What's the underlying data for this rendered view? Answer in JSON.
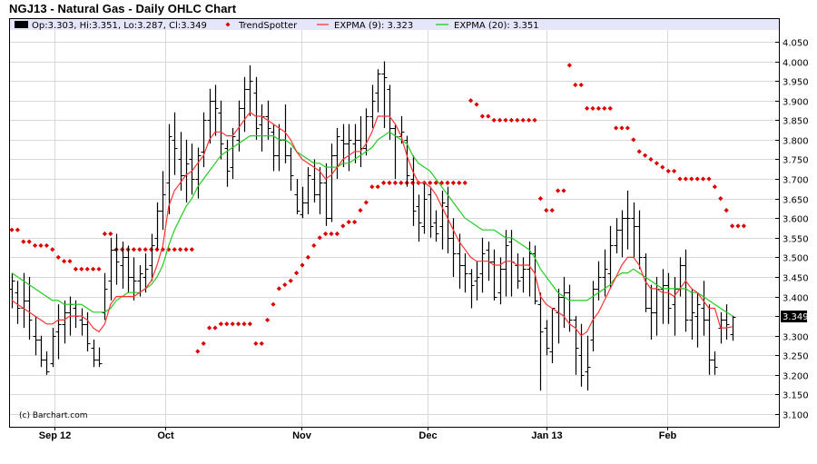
{
  "title": "NGJ13 - Natural Gas - Daily OHLC Chart",
  "legend": {
    "ohlc": "Op:3.303, Hi:3.351, Lo:3.287, Cl:3.349",
    "trendspotter": "TrendSpotter",
    "ema9": "EXPMA (9): 3.323",
    "ema20": "EXPMA (20): 3.351"
  },
  "copyright": "(c) Barchart.com",
  "last_price_label": "3.349",
  "colors": {
    "bars": "#000000",
    "ema9": "#ff3333",
    "ema20": "#22cc22",
    "trendspotter": "#dd0000",
    "legend_bg": "#e6e6fa",
    "grid": "#d8d8d8"
  },
  "chart_data": {
    "type": "ohlc",
    "title": "NGJ13 - Natural Gas - Daily OHLC Chart",
    "xlabel": "",
    "ylabel": "",
    "ylim": [
      3.07,
      4.11
    ],
    "grid": true,
    "legend_position": "top",
    "y_ticks": [
      "4.050",
      "4.000",
      "3.950",
      "3.900",
      "3.850",
      "3.800",
      "3.750",
      "3.700",
      "3.650",
      "3.600",
      "3.550",
      "3.500",
      "3.450",
      "3.400",
      "3.300",
      "3.250",
      "3.200",
      "3.150",
      "3.100"
    ],
    "x_ticks": [
      {
        "label": "Sep 12",
        "index": 7
      },
      {
        "label": "Oct",
        "index": 26
      },
      {
        "label": "Nov",
        "index": 49
      },
      {
        "label": "Dec",
        "index": 71
      },
      {
        "label": "Jan 13",
        "index": 92
      },
      {
        "label": "Feb",
        "index": 113
      }
    ],
    "series": [
      {
        "name": "OHLC",
        "values": [
          [
            3.42,
            3.46,
            3.37,
            3.44
          ],
          [
            3.41,
            3.44,
            3.33,
            3.37
          ],
          [
            3.37,
            3.46,
            3.32,
            3.39
          ],
          [
            3.39,
            3.45,
            3.29,
            3.34
          ],
          [
            3.3,
            3.35,
            3.25,
            3.29
          ],
          [
            3.29,
            3.3,
            3.22,
            3.24
          ],
          [
            3.24,
            3.26,
            3.2,
            3.21
          ],
          [
            3.23,
            3.32,
            3.22,
            3.3
          ],
          [
            3.31,
            3.38,
            3.24,
            3.33
          ],
          [
            3.33,
            3.39,
            3.28,
            3.36
          ],
          [
            3.36,
            3.4,
            3.3,
            3.38
          ],
          [
            3.37,
            3.39,
            3.32,
            3.35
          ],
          [
            3.34,
            3.37,
            3.3,
            3.33
          ],
          [
            3.33,
            3.36,
            3.26,
            3.28
          ],
          [
            3.27,
            3.29,
            3.22,
            3.24
          ],
          [
            3.24,
            3.27,
            3.22,
            3.23
          ],
          [
            3.36,
            3.46,
            3.34,
            3.42
          ],
          [
            3.44,
            3.55,
            3.39,
            3.52
          ],
          [
            3.52,
            3.56,
            3.43,
            3.49
          ],
          [
            3.48,
            3.54,
            3.42,
            3.5
          ],
          [
            3.5,
            3.53,
            3.41,
            3.45
          ],
          [
            3.45,
            3.5,
            3.39,
            3.44
          ],
          [
            3.44,
            3.48,
            3.4,
            3.46
          ],
          [
            3.45,
            3.51,
            3.41,
            3.47
          ],
          [
            3.48,
            3.56,
            3.44,
            3.53
          ],
          [
            3.55,
            3.64,
            3.52,
            3.62
          ],
          [
            3.62,
            3.72,
            3.57,
            3.66
          ],
          [
            3.69,
            3.84,
            3.61,
            3.81
          ],
          [
            3.8,
            3.87,
            3.71,
            3.78
          ],
          [
            3.75,
            3.82,
            3.67,
            3.71
          ],
          [
            3.71,
            3.8,
            3.64,
            3.74
          ],
          [
            3.75,
            3.79,
            3.66,
            3.7
          ],
          [
            3.7,
            3.78,
            3.65,
            3.76
          ],
          [
            3.77,
            3.87,
            3.73,
            3.85
          ],
          [
            3.85,
            3.93,
            3.79,
            3.9
          ],
          [
            3.9,
            3.94,
            3.81,
            3.88
          ],
          [
            3.87,
            3.9,
            3.75,
            3.79
          ],
          [
            3.78,
            3.8,
            3.68,
            3.72
          ],
          [
            3.73,
            3.83,
            3.7,
            3.81
          ],
          [
            3.8,
            3.9,
            3.77,
            3.88
          ],
          [
            3.88,
            3.96,
            3.82,
            3.93
          ],
          [
            3.93,
            3.99,
            3.86,
            3.95
          ],
          [
            3.92,
            3.96,
            3.8,
            3.83
          ],
          [
            3.84,
            3.89,
            3.77,
            3.86
          ],
          [
            3.86,
            3.9,
            3.8,
            3.83
          ],
          [
            3.82,
            3.84,
            3.72,
            3.76
          ],
          [
            3.76,
            3.84,
            3.72,
            3.8
          ],
          [
            3.8,
            3.89,
            3.74,
            3.76
          ],
          [
            3.76,
            3.78,
            3.67,
            3.71
          ],
          [
            3.66,
            3.7,
            3.61,
            3.62
          ],
          [
            3.61,
            3.68,
            3.6,
            3.64
          ],
          [
            3.64,
            3.73,
            3.61,
            3.71
          ],
          [
            3.7,
            3.75,
            3.64,
            3.66
          ],
          [
            3.66,
            3.73,
            3.61,
            3.69
          ],
          [
            3.69,
            3.74,
            3.58,
            3.6
          ],
          [
            3.6,
            3.79,
            3.59,
            3.76
          ],
          [
            3.76,
            3.83,
            3.7,
            3.81
          ],
          [
            3.8,
            3.84,
            3.73,
            3.79
          ],
          [
            3.79,
            3.84,
            3.72,
            3.8
          ],
          [
            3.79,
            3.84,
            3.74,
            3.8
          ],
          [
            3.8,
            3.86,
            3.73,
            3.78
          ],
          [
            3.78,
            3.88,
            3.76,
            3.86
          ],
          [
            3.86,
            3.94,
            3.83,
            3.9
          ],
          [
            3.92,
            3.98,
            3.87,
            3.97
          ],
          [
            3.97,
            4.0,
            3.83,
            3.96
          ],
          [
            3.93,
            3.94,
            3.8,
            3.83
          ],
          [
            3.83,
            3.84,
            3.7,
            3.81
          ],
          [
            3.81,
            3.86,
            3.79,
            3.82
          ],
          [
            3.8,
            3.81,
            3.68,
            3.71
          ],
          [
            3.7,
            3.76,
            3.58,
            3.62
          ],
          [
            3.63,
            3.66,
            3.54,
            3.59
          ],
          [
            3.58,
            3.69,
            3.56,
            3.65
          ],
          [
            3.66,
            3.68,
            3.55,
            3.58
          ],
          [
            3.59,
            3.62,
            3.54,
            3.56
          ],
          [
            3.58,
            3.67,
            3.52,
            3.64
          ],
          [
            3.63,
            3.68,
            3.51,
            3.55
          ],
          [
            3.55,
            3.6,
            3.45,
            3.51
          ],
          [
            3.51,
            3.56,
            3.42,
            3.48
          ],
          [
            3.48,
            3.51,
            3.41,
            3.46
          ],
          [
            3.46,
            3.47,
            3.37,
            3.43
          ],
          [
            3.44,
            3.49,
            3.39,
            3.45
          ],
          [
            3.46,
            3.55,
            3.41,
            3.51
          ],
          [
            3.52,
            3.54,
            3.44,
            3.49
          ],
          [
            3.49,
            3.52,
            3.39,
            3.4
          ],
          [
            3.41,
            3.5,
            3.38,
            3.47
          ],
          [
            3.47,
            3.57,
            3.4,
            3.53
          ],
          [
            3.54,
            3.57,
            3.4,
            3.49
          ],
          [
            3.48,
            3.51,
            3.42,
            3.44
          ],
          [
            3.45,
            3.5,
            3.41,
            3.47
          ],
          [
            3.47,
            3.54,
            3.4,
            3.51
          ],
          [
            3.51,
            3.53,
            3.38,
            3.39
          ],
          [
            3.38,
            3.41,
            3.16,
            3.31
          ],
          [
            3.32,
            3.34,
            3.25,
            3.27
          ],
          [
            3.26,
            3.37,
            3.23,
            3.37
          ],
          [
            3.36,
            3.42,
            3.28,
            3.4
          ],
          [
            3.4,
            3.45,
            3.32,
            3.41
          ],
          [
            3.41,
            3.43,
            3.31,
            3.34
          ],
          [
            3.34,
            3.35,
            3.2,
            3.27
          ],
          [
            3.25,
            3.33,
            3.17,
            3.2
          ],
          [
            3.21,
            3.3,
            3.16,
            3.22
          ],
          [
            3.29,
            3.44,
            3.26,
            3.42
          ],
          [
            3.42,
            3.49,
            3.39,
            3.45
          ],
          [
            3.45,
            3.52,
            3.4,
            3.47
          ],
          [
            3.46,
            3.58,
            3.42,
            3.53
          ],
          [
            3.53,
            3.6,
            3.51,
            3.57
          ],
          [
            3.57,
            3.62,
            3.5,
            3.6
          ],
          [
            3.6,
            3.67,
            3.52,
            3.6
          ],
          [
            3.6,
            3.64,
            3.5,
            3.58
          ],
          [
            3.58,
            3.62,
            3.47,
            3.5
          ],
          [
            3.5,
            3.51,
            3.36,
            3.37
          ],
          [
            3.37,
            3.43,
            3.29,
            3.36
          ],
          [
            3.36,
            3.45,
            3.3,
            3.42
          ],
          [
            3.42,
            3.47,
            3.33,
            3.43
          ],
          [
            3.43,
            3.46,
            3.33,
            3.37
          ],
          [
            3.38,
            3.45,
            3.3,
            3.42
          ],
          [
            3.42,
            3.5,
            3.4,
            3.48
          ],
          [
            3.48,
            3.52,
            3.31,
            3.34
          ],
          [
            3.34,
            3.42,
            3.29,
            3.36
          ],
          [
            3.35,
            3.41,
            3.27,
            3.38
          ],
          [
            3.37,
            3.44,
            3.3,
            3.34
          ],
          [
            3.34,
            3.38,
            3.2,
            3.24
          ],
          [
            3.24,
            3.26,
            3.2,
            3.22
          ],
          [
            3.32,
            3.36,
            3.28,
            3.34
          ],
          [
            3.34,
            3.38,
            3.29,
            3.33
          ],
          [
            3.303,
            3.351,
            3.287,
            3.349
          ]
        ]
      },
      {
        "name": "EXPMA (9)",
        "values": [
          3.39,
          3.38,
          3.37,
          3.36,
          3.35,
          3.34,
          3.33,
          3.33,
          3.34,
          3.34,
          3.35,
          3.35,
          3.35,
          3.34,
          3.32,
          3.31,
          3.33,
          3.38,
          3.4,
          3.4,
          3.4,
          3.4,
          3.41,
          3.42,
          3.44,
          3.48,
          3.53,
          3.63,
          3.67,
          3.69,
          3.71,
          3.72,
          3.74,
          3.76,
          3.8,
          3.82,
          3.82,
          3.81,
          3.81,
          3.83,
          3.85,
          3.87,
          3.86,
          3.86,
          3.85,
          3.84,
          3.83,
          3.82,
          3.8,
          3.77,
          3.75,
          3.74,
          3.73,
          3.72,
          3.7,
          3.71,
          3.73,
          3.75,
          3.76,
          3.77,
          3.77,
          3.79,
          3.82,
          3.86,
          3.86,
          3.86,
          3.84,
          3.81,
          3.76,
          3.72,
          3.69,
          3.69,
          3.68,
          3.66,
          3.63,
          3.6,
          3.57,
          3.54,
          3.52,
          3.5,
          3.49,
          3.49,
          3.49,
          3.48,
          3.48,
          3.49,
          3.49,
          3.48,
          3.48,
          3.48,
          3.46,
          3.4,
          3.38,
          3.37,
          3.36,
          3.35,
          3.33,
          3.32,
          3.3,
          3.31,
          3.34,
          3.36,
          3.39,
          3.42,
          3.45,
          3.48,
          3.5,
          3.5,
          3.48,
          3.44,
          3.42,
          3.42,
          3.41,
          3.41,
          3.4,
          3.42,
          3.44,
          3.42,
          3.41,
          3.39,
          3.37,
          3.37,
          3.32,
          3.32,
          3.323
        ]
      },
      {
        "name": "EXPMA (20)",
        "values": [
          3.46,
          3.45,
          3.44,
          3.43,
          3.42,
          3.41,
          3.4,
          3.39,
          3.39,
          3.38,
          3.38,
          3.38,
          3.38,
          3.37,
          3.36,
          3.36,
          3.36,
          3.37,
          3.39,
          3.4,
          3.41,
          3.41,
          3.41,
          3.42,
          3.43,
          3.45,
          3.48,
          3.53,
          3.57,
          3.6,
          3.63,
          3.65,
          3.68,
          3.7,
          3.72,
          3.74,
          3.76,
          3.77,
          3.78,
          3.79,
          3.8,
          3.81,
          3.81,
          3.81,
          3.81,
          3.81,
          3.8,
          3.8,
          3.79,
          3.77,
          3.76,
          3.75,
          3.74,
          3.74,
          3.73,
          3.73,
          3.73,
          3.74,
          3.74,
          3.75,
          3.76,
          3.77,
          3.78,
          3.8,
          3.81,
          3.82,
          3.81,
          3.8,
          3.79,
          3.76,
          3.74,
          3.73,
          3.72,
          3.7,
          3.68,
          3.66,
          3.64,
          3.62,
          3.6,
          3.59,
          3.58,
          3.57,
          3.57,
          3.57,
          3.56,
          3.55,
          3.55,
          3.54,
          3.53,
          3.52,
          3.5,
          3.47,
          3.45,
          3.43,
          3.41,
          3.4,
          3.39,
          3.39,
          3.39,
          3.39,
          3.4,
          3.41,
          3.42,
          3.43,
          3.45,
          3.46,
          3.46,
          3.47,
          3.46,
          3.45,
          3.44,
          3.43,
          3.42,
          3.42,
          3.42,
          3.42,
          3.42,
          3.41,
          3.41,
          3.4,
          3.39,
          3.38,
          3.37,
          3.36,
          3.351
        ]
      },
      {
        "name": "TrendSpotter",
        "values": [
          3.57,
          3.57,
          3.54,
          3.54,
          3.53,
          3.53,
          3.53,
          3.52,
          3.5,
          3.49,
          3.49,
          3.47,
          3.47,
          3.47,
          3.47,
          3.47,
          3.56,
          3.56,
          3.52,
          3.52,
          3.52,
          3.52,
          3.52,
          3.52,
          3.52,
          3.52,
          3.52,
          3.52,
          3.52,
          3.52,
          3.52,
          3.52,
          3.26,
          3.28,
          3.32,
          3.32,
          3.33,
          3.33,
          3.33,
          3.33,
          3.33,
          3.33,
          3.28,
          3.28,
          3.34,
          3.38,
          3.42,
          3.43,
          3.44,
          3.46,
          3.48,
          3.5,
          3.53,
          3.55,
          3.56,
          3.56,
          3.56,
          3.58,
          3.59,
          3.59,
          3.62,
          3.64,
          3.68,
          3.68,
          3.69,
          3.69,
          3.69,
          3.69,
          3.69,
          3.69,
          3.69,
          3.69,
          3.69,
          3.69,
          3.69,
          3.69,
          3.69,
          3.69,
          3.69,
          3.9,
          3.89,
          3.86,
          3.86,
          3.85,
          3.85,
          3.85,
          3.85,
          3.85,
          3.85,
          3.85,
          3.85,
          3.65,
          3.62,
          3.62,
          3.67,
          3.67,
          3.99,
          3.94,
          3.94,
          3.88,
          3.88,
          3.88,
          3.88,
          3.88,
          3.83,
          3.83,
          3.83,
          3.8,
          3.77,
          3.76,
          3.75,
          3.74,
          3.73,
          3.72,
          3.72,
          3.7,
          3.7,
          3.7,
          3.7,
          3.7,
          3.7,
          3.68,
          3.65,
          3.62,
          3.58,
          3.58,
          3.58
        ]
      }
    ]
  }
}
